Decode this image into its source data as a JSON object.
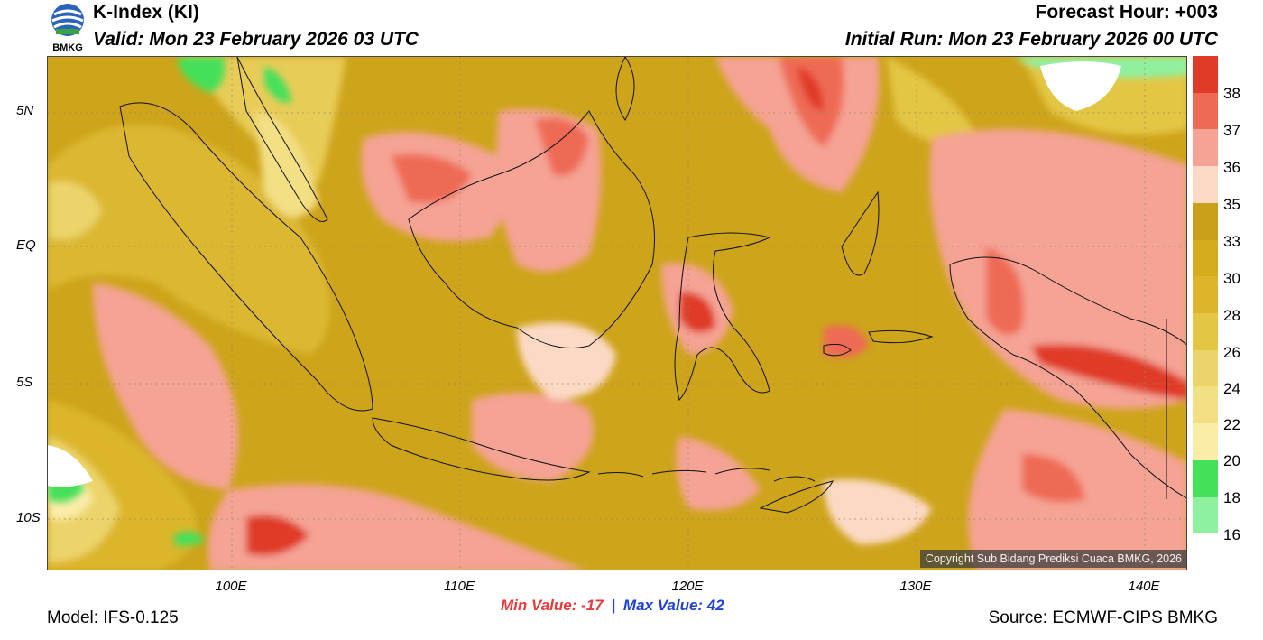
{
  "header": {
    "title": "K-Index (KI)",
    "valid": "Valid: Mon 23 February 2026 03 UTC",
    "forecast_hour": "Forecast Hour: +003",
    "initial_run": "Initial Run: Mon 23 February 2026 00 UTC",
    "logo_text": "BMKG"
  },
  "map": {
    "lat_labels": [
      "5N",
      "EQ",
      "5S",
      "10S"
    ],
    "lon_labels": [
      "100E",
      "110E",
      "120E",
      "130E",
      "140E"
    ],
    "copyright": "Copyright Sub Bidang Prediksi Cuaca BMKG, 2026"
  },
  "colorbar": {
    "labels": [
      "38",
      "37",
      "36",
      "35",
      "33",
      "30",
      "28",
      "26",
      "24",
      "22",
      "20",
      "18",
      "16"
    ],
    "colors": [
      "#e03b26",
      "#ef6a55",
      "#f5a394",
      "#fcd9c4",
      "#c9a01a",
      "#d4ac1c",
      "#dcb52a",
      "#e4c645",
      "#ecd46a",
      "#f3df84",
      "#fbeca8",
      "#44e05a",
      "#8ff0a0",
      "#ffffff"
    ]
  },
  "stats": {
    "min_label": "Min Value: -17",
    "separator": "|",
    "max_label": "Max Value:  42"
  },
  "footer": {
    "model": "Model: IFS-0.125",
    "source": "Source: ECMWF-CIPS BMKG"
  }
}
